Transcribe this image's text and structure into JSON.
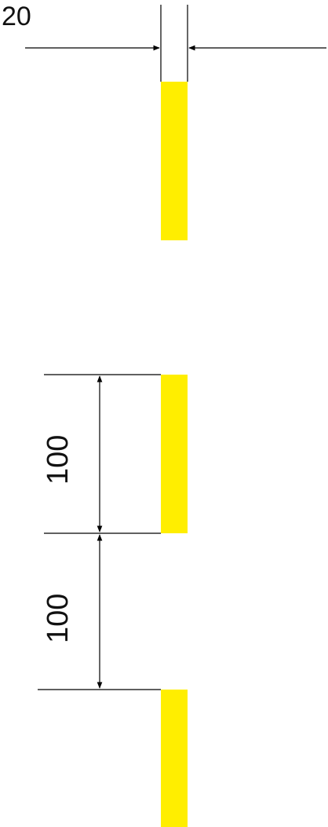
{
  "diagram": {
    "colors": {
      "marking": "#ffee00",
      "line": "#000000",
      "text": "#111111",
      "background": "#ffffff"
    },
    "dimensions": {
      "width_label": "20",
      "gap_label": "100",
      "segment_label": "100"
    }
  }
}
